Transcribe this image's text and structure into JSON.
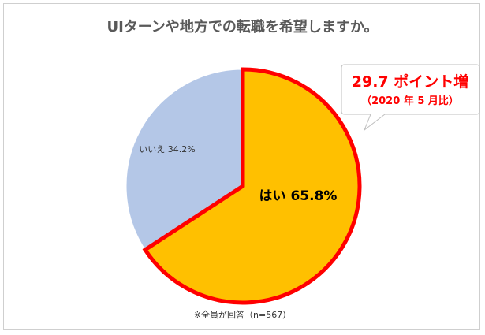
{
  "chart_data": {
    "type": "pie",
    "title": "UIターンや地方での転職を希望しますか。",
    "slices": [
      {
        "label": "はい 65.8%",
        "value": 65.8,
        "color": "#FFC000",
        "highlight": true
      },
      {
        "label": "いいえ 34.2%",
        "value": 34.2,
        "color": "#B4C7E7",
        "highlight": false
      }
    ],
    "callout": {
      "line1": "29.7 ポイント増",
      "line2": "（2020 年 5 月比）",
      "color": "#FF0000"
    },
    "note": "※全員が回答（n=567）"
  }
}
